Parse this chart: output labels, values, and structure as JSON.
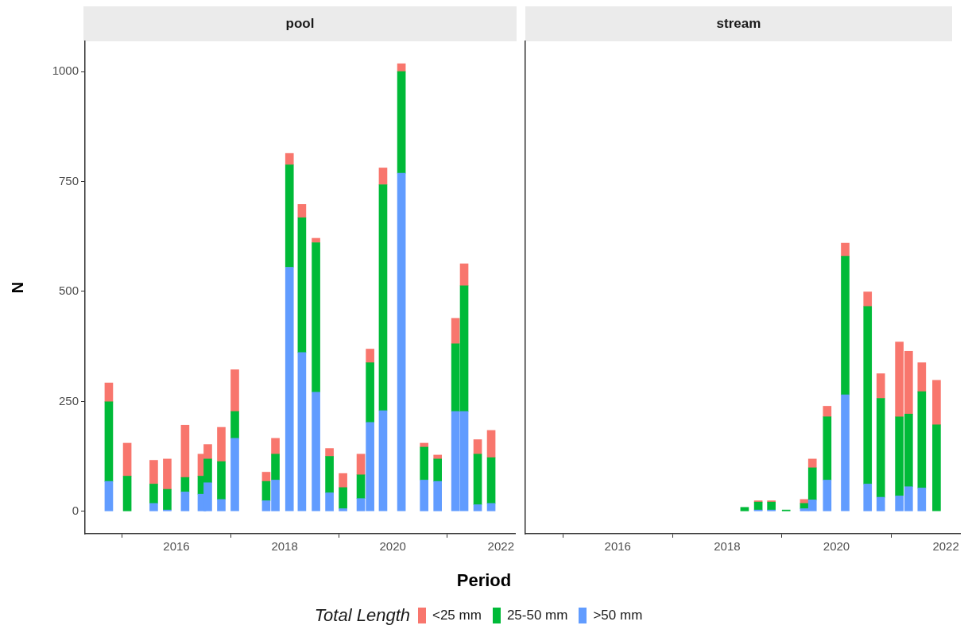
{
  "chart_data": [
    {
      "type": "bar",
      "title": "pool",
      "xlabel": "Period",
      "ylabel": "N",
      "legend_title": "Total Length",
      "legend": "bottom",
      "stacked": true,
      "x": [
        2014.75,
        2015.09,
        2015.58,
        2015.83,
        2016.16,
        2016.47,
        2016.58,
        2016.83,
        2017.08,
        2017.66,
        2017.83,
        2018.09,
        2018.32,
        2018.58,
        2018.83,
        2019.08,
        2019.41,
        2019.58,
        2019.82,
        2020.16,
        2020.58,
        2020.83,
        2021.16,
        2021.32,
        2021.57,
        2021.82
      ],
      "series": [
        {
          "name": ">50 mm",
          "color": "#619cff",
          "values": [
            68,
            null,
            18,
            3,
            44,
            39,
            65,
            27,
            166,
            24,
            71,
            555,
            361,
            271,
            42,
            6,
            29,
            202,
            229,
            769,
            71,
            68,
            227,
            227,
            15,
            18
          ]
        },
        {
          "name": "25-50 mm",
          "color": "#00ba38",
          "values": [
            181,
            80,
            44,
            47,
            33,
            41,
            54,
            86,
            61,
            44,
            59,
            233,
            307,
            340,
            83,
            48,
            54,
            136,
            514,
            231,
            75,
            51,
            154,
            286,
            115,
            104
          ]
        },
        {
          "name": "<25 mm",
          "color": "#f8766d",
          "values": [
            43,
            75,
            54,
            69,
            119,
            50,
            33,
            78,
            95,
            21,
            36,
            26,
            30,
            10,
            18,
            32,
            47,
            31,
            38,
            18,
            9,
            9,
            58,
            50,
            33,
            62
          ]
        }
      ],
      "xlim": [
        2014.31,
        2022.26
      ],
      "xticks": [
        2016,
        2018,
        2020,
        2022
      ],
      "ylim": [
        -51,
        1069
      ],
      "yticks": [
        0,
        250,
        500,
        750,
        1000
      ]
    },
    {
      "type": "bar",
      "title": "stream",
      "stacked": true,
      "tick_labels": "x",
      "x": [
        2018.32,
        2018.57,
        2018.81,
        2019.08,
        2019.41,
        2019.56,
        2019.83,
        2020.16,
        2020.57,
        2020.81,
        2021.15,
        2021.32,
        2021.56,
        2021.83
      ],
      "series": [
        {
          "name": ">50 mm",
          "color": "#619cff",
          "values": [
            null,
            3,
            3,
            null,
            6,
            26,
            71,
            265,
            62,
            32,
            35,
            56,
            53,
            null
          ]
        },
        {
          "name": "25-50 mm",
          "color": "#00ba38",
          "values": [
            9,
            18,
            18,
            3,
            12,
            73,
            144,
            315,
            404,
            225,
            180,
            165,
            219,
            197
          ]
        },
        {
          "name": "<25 mm",
          "color": "#f8766d",
          "values": [
            null,
            3,
            3,
            null,
            9,
            20,
            24,
            30,
            33,
            56,
            170,
            143,
            66,
            101
          ]
        }
      ],
      "xlim": [
        2014.31,
        2022.26
      ],
      "xticks": [
        2016,
        2018,
        2020,
        2022
      ],
      "ylim": [
        -51,
        1069
      ],
      "yticks": [
        0,
        250,
        500,
        750,
        1000
      ]
    }
  ]
}
